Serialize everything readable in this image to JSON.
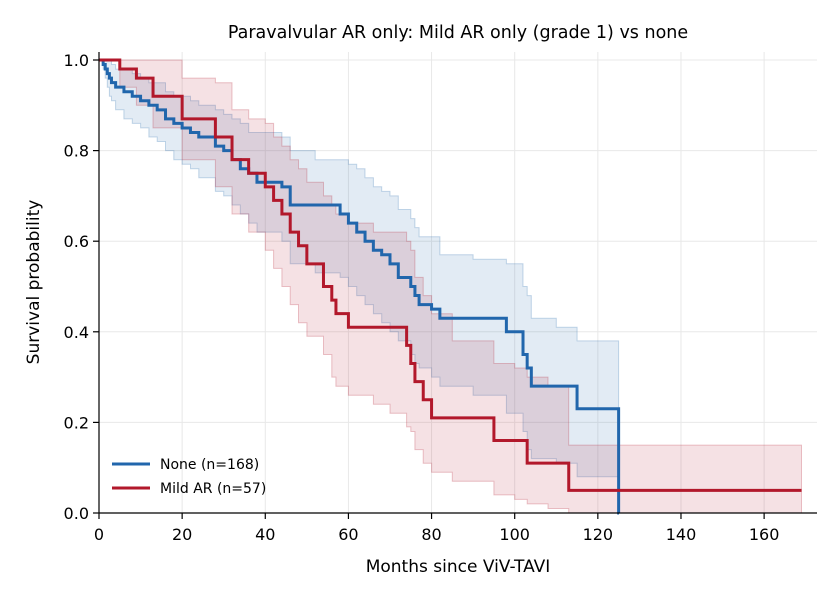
{
  "chart_data": {
    "type": "line",
    "subtype": "kaplan-meier",
    "title": "Paravalvular AR only: Mild AR only (grade 1) vs none",
    "xlabel": "Months since ViV-TAVI",
    "ylabel": "Survival probability",
    "xlim": [
      0,
      172
    ],
    "ylim": [
      0,
      1.03
    ],
    "xticks": [
      0,
      20,
      40,
      60,
      80,
      100,
      120,
      140,
      160
    ],
    "xtick_labels": [
      "0",
      "20",
      "40",
      "60",
      "80",
      "100",
      "120",
      "140",
      "160"
    ],
    "yticks": [
      0.0,
      0.2,
      0.4,
      0.6,
      0.8,
      1.0
    ],
    "ytick_labels": [
      "0.0",
      "0.2",
      "0.4",
      "0.6",
      "0.8",
      "1.0"
    ],
    "grid": true,
    "legend_position": "lower-left",
    "series": [
      {
        "name": "None (n=168)",
        "color": "#2166ac",
        "x": [
          0,
          1,
          1.5,
          2,
          2.5,
          3,
          4,
          6,
          8,
          10,
          12,
          14,
          16,
          18,
          20,
          22,
          24,
          28,
          30,
          32,
          34,
          36,
          38,
          44,
          46,
          52,
          58,
          60,
          62,
          64,
          66,
          68,
          70,
          72,
          75,
          76,
          77,
          80,
          82,
          90,
          98,
          102,
          103,
          104,
          110,
          115,
          120,
          125,
          125.1
        ],
        "y": [
          1.0,
          0.99,
          0.98,
          0.97,
          0.96,
          0.95,
          0.94,
          0.93,
          0.92,
          0.91,
          0.9,
          0.89,
          0.87,
          0.86,
          0.85,
          0.84,
          0.83,
          0.81,
          0.8,
          0.78,
          0.76,
          0.75,
          0.73,
          0.72,
          0.68,
          0.68,
          0.66,
          0.64,
          0.62,
          0.6,
          0.58,
          0.57,
          0.55,
          0.52,
          0.5,
          0.48,
          0.46,
          0.45,
          0.43,
          0.43,
          0.4,
          0.35,
          0.32,
          0.28,
          0.28,
          0.23,
          0.23,
          0.0,
          0.0
        ],
        "ci_lower": [
          1.0,
          0.98,
          0.96,
          0.94,
          0.92,
          0.91,
          0.89,
          0.87,
          0.86,
          0.85,
          0.83,
          0.82,
          0.8,
          0.78,
          0.77,
          0.76,
          0.74,
          0.71,
          0.7,
          0.68,
          0.66,
          0.64,
          0.62,
          0.6,
          0.55,
          0.53,
          0.52,
          0.5,
          0.48,
          0.46,
          0.44,
          0.42,
          0.4,
          0.38,
          0.35,
          0.33,
          0.32,
          0.3,
          0.28,
          0.26,
          0.22,
          0.18,
          0.14,
          0.12,
          0.11,
          0.08,
          0.08,
          0.0,
          0.0
        ],
        "ci_upper": [
          1.0,
          1.0,
          1.0,
          1.0,
          1.0,
          0.99,
          0.98,
          0.98,
          0.97,
          0.96,
          0.95,
          0.95,
          0.93,
          0.92,
          0.92,
          0.91,
          0.9,
          0.89,
          0.88,
          0.87,
          0.86,
          0.84,
          0.84,
          0.83,
          0.8,
          0.78,
          0.78,
          0.77,
          0.76,
          0.74,
          0.72,
          0.71,
          0.7,
          0.67,
          0.65,
          0.63,
          0.61,
          0.61,
          0.57,
          0.56,
          0.55,
          0.5,
          0.48,
          0.43,
          0.41,
          0.38,
          0.38,
          0.0,
          0.0
        ]
      },
      {
        "name": "Mild AR (n=57)",
        "color": "#b2182b",
        "x": [
          0,
          5,
          9,
          13,
          20,
          28,
          32,
          36,
          40,
          42,
          44,
          46,
          48,
          50,
          54,
          56,
          57,
          60,
          66,
          70,
          74,
          75,
          76,
          78,
          80,
          85,
          95,
          100,
          103,
          108,
          113,
          125,
          140,
          169
        ],
        "y": [
          1.0,
          0.98,
          0.96,
          0.92,
          0.87,
          0.83,
          0.78,
          0.75,
          0.72,
          0.69,
          0.66,
          0.62,
          0.59,
          0.55,
          0.5,
          0.47,
          0.44,
          0.41,
          0.41,
          0.41,
          0.37,
          0.33,
          0.29,
          0.25,
          0.21,
          0.21,
          0.16,
          0.16,
          0.11,
          0.11,
          0.05,
          0.05,
          0.05,
          0.05
        ],
        "ci_lower": [
          1.0,
          0.94,
          0.9,
          0.85,
          0.78,
          0.72,
          0.66,
          0.62,
          0.58,
          0.54,
          0.5,
          0.46,
          0.42,
          0.39,
          0.35,
          0.3,
          0.28,
          0.26,
          0.24,
          0.22,
          0.19,
          0.18,
          0.14,
          0.11,
          0.09,
          0.07,
          0.04,
          0.03,
          0.02,
          0.01,
          0.0,
          0.0,
          0.0,
          0.0
        ],
        "ci_upper": [
          1.0,
          1.0,
          1.0,
          1.0,
          0.96,
          0.95,
          0.89,
          0.87,
          0.86,
          0.83,
          0.81,
          0.78,
          0.76,
          0.73,
          0.7,
          0.68,
          0.66,
          0.64,
          0.62,
          0.62,
          0.6,
          0.58,
          0.52,
          0.48,
          0.44,
          0.38,
          0.33,
          0.32,
          0.3,
          0.28,
          0.15,
          0.15,
          0.15,
          0.15
        ]
      }
    ]
  }
}
